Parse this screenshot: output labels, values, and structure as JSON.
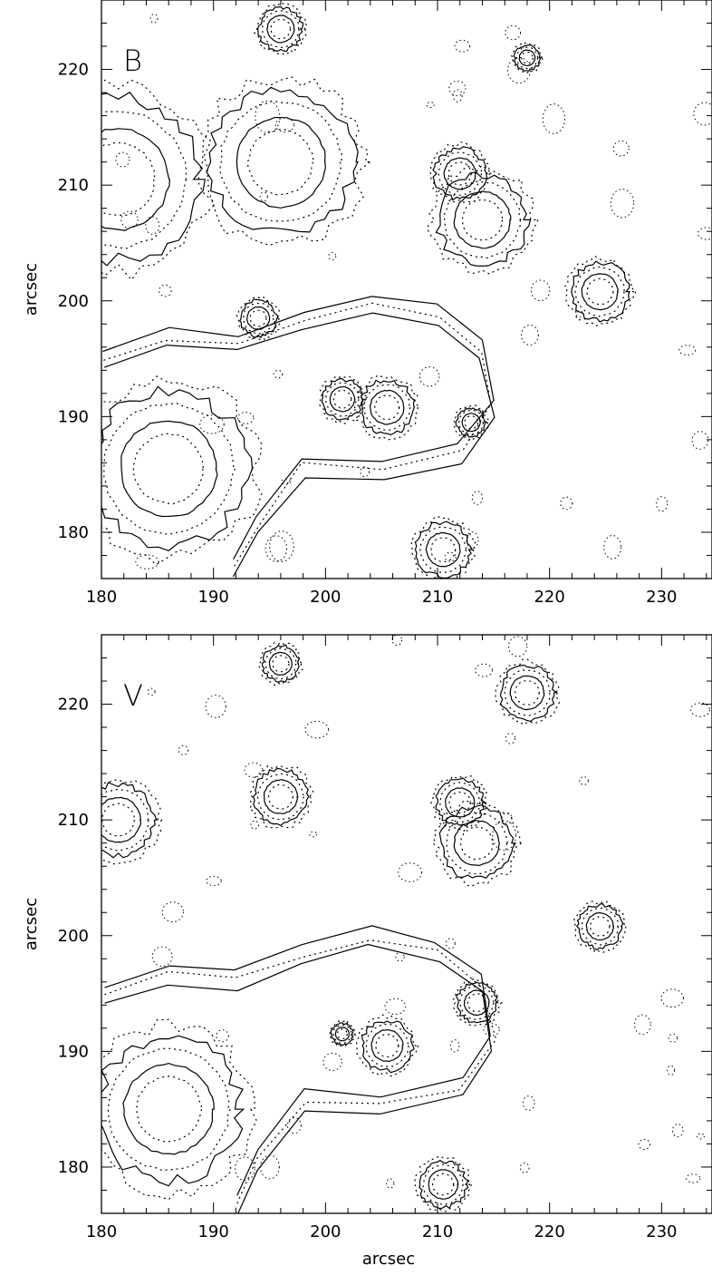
{
  "chart_data": [
    {
      "type": "contour",
      "panel_label": "B",
      "xlabel": "",
      "ylabel": "arcsec",
      "xlim": [
        180,
        234.5
      ],
      "ylim": [
        176,
        226
      ],
      "xticks": [
        180,
        190,
        200,
        210,
        220,
        230
      ],
      "yticks": [
        180,
        190,
        200,
        210,
        220
      ],
      "levels": [
        "solid",
        "dotted"
      ],
      "sources": [
        {
          "x": 181.5,
          "y": 210.5,
          "r": 4.5
        },
        {
          "x": 186.0,
          "y": 185.5,
          "r": 4.3
        },
        {
          "x": 196.0,
          "y": 212.0,
          "r": 4.0
        },
        {
          "x": 196.0,
          "y": 223.5,
          "r": 1.2
        },
        {
          "x": 194.0,
          "y": 198.5,
          "r": 1.0
        },
        {
          "x": 201.5,
          "y": 191.5,
          "r": 1.1
        },
        {
          "x": 205.5,
          "y": 190.8,
          "r": 1.5
        },
        {
          "x": 212.0,
          "y": 211.0,
          "r": 1.4
        },
        {
          "x": 214.0,
          "y": 207.0,
          "r": 2.5
        },
        {
          "x": 213.0,
          "y": 189.5,
          "r": 0.8
        },
        {
          "x": 210.5,
          "y": 178.5,
          "r": 1.5
        },
        {
          "x": 218.0,
          "y": 221.0,
          "r": 0.7
        },
        {
          "x": 224.5,
          "y": 200.8,
          "r": 1.6
        }
      ]
    },
    {
      "type": "contour",
      "panel_label": "V",
      "xlabel": "arcsec",
      "ylabel": "arcsec",
      "xlim": [
        180,
        234.5
      ],
      "ylim": [
        176,
        226
      ],
      "xticks": [
        180,
        190,
        200,
        210,
        220,
        230
      ],
      "yticks": [
        180,
        190,
        200,
        210,
        220
      ],
      "levels": [
        "solid",
        "dotted"
      ],
      "sources": [
        {
          "x": 181.5,
          "y": 210.0,
          "r": 2.0
        },
        {
          "x": 186.0,
          "y": 185.0,
          "r": 4.0
        },
        {
          "x": 196.0,
          "y": 212.0,
          "r": 1.5
        },
        {
          "x": 196.0,
          "y": 223.5,
          "r": 1.0
        },
        {
          "x": 201.5,
          "y": 191.5,
          "r": 0.6
        },
        {
          "x": 205.5,
          "y": 190.5,
          "r": 1.4
        },
        {
          "x": 212.0,
          "y": 211.5,
          "r": 1.3
        },
        {
          "x": 213.5,
          "y": 208.0,
          "r": 2.0
        },
        {
          "x": 213.5,
          "y": 194.2,
          "r": 1.1
        },
        {
          "x": 210.5,
          "y": 178.5,
          "r": 1.3
        },
        {
          "x": 218.0,
          "y": 221.0,
          "r": 1.5
        },
        {
          "x": 224.5,
          "y": 200.8,
          "r": 1.2
        }
      ]
    }
  ]
}
